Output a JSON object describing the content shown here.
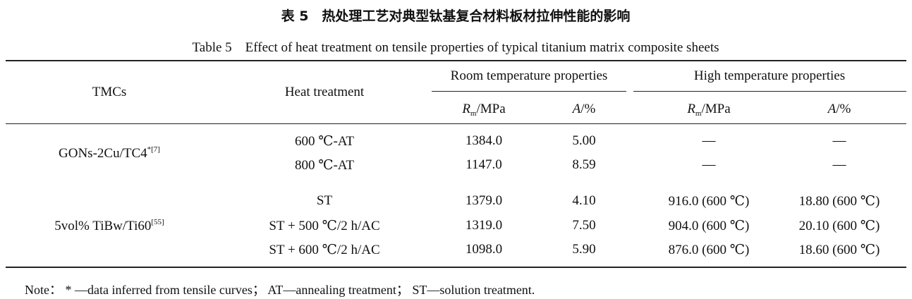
{
  "title_cn": "表 5　热处理工艺对典型钛基复合材料板材拉伸性能的影响",
  "title_en": "Table 5　Effect of heat treatment on tensile properties of typical titanium matrix composite sheets",
  "headers": {
    "tmcs": "TMCs",
    "heat": "Heat treatment",
    "room": "Room temperature properties",
    "high": "High temperature properties",
    "rm_sym": "R",
    "rm_sub": "m",
    "rm_unit": "/MPa",
    "a_sym": "A",
    "a_unit": "/%"
  },
  "groups": [
    {
      "name": "GONs-2Cu/TC4",
      "ref": "*[7]"
    },
    {
      "name": "5vol% TiBw/Ti60",
      "ref": "[55]"
    }
  ],
  "rows": [
    {
      "heat": "600 ℃-AT",
      "rm": "1384.0",
      "a": "5.00",
      "hrm": "—",
      "ha": "—"
    },
    {
      "heat": "800 ℃-AT",
      "rm": "1147.0",
      "a": "8.59",
      "hrm": "—",
      "ha": "—"
    },
    {
      "heat": "ST",
      "rm": "1379.0",
      "a": "4.10",
      "hrm": "916.0 (600 ℃)",
      "ha": "18.80 (600 ℃)"
    },
    {
      "heat": "ST + 500 ℃/2 h/AC",
      "rm": "1319.0",
      "a": "7.50",
      "hrm": "904.0 (600 ℃)",
      "ha": "20.10 (600 ℃)"
    },
    {
      "heat": "ST + 600 ℃/2 h/AC",
      "rm": "1098.0",
      "a": "5.90",
      "hrm": "876.0 (600 ℃)",
      "ha": "18.60 (600 ℃)"
    }
  ],
  "note": "Note： * —data inferred from tensile curves； AT—annealing treatment； ST—solution treatment."
}
